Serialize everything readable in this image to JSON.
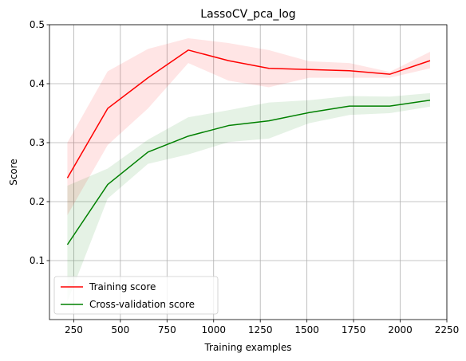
{
  "chart_data": {
    "type": "line",
    "title": "LassoCV_pca_log",
    "xlabel": "Training examples",
    "ylabel": "Score",
    "xlim": [
      120,
      2250
    ],
    "ylim": [
      0.0,
      0.5
    ],
    "grid": true,
    "legend_position": "lower-left",
    "x_ticks": [
      250,
      500,
      750,
      1000,
      1250,
      1500,
      1750,
      2000,
      2250
    ],
    "y_ticks": [
      0.1,
      0.2,
      0.3,
      0.4,
      0.5
    ],
    "x": [
      216,
      432,
      648,
      864,
      1080,
      1296,
      1512,
      1728,
      1944,
      2160
    ],
    "series": [
      {
        "name": "Training score",
        "color": "#ff0000",
        "values": [
          0.24,
          0.358,
          0.41,
          0.457,
          0.439,
          0.426,
          0.424,
          0.422,
          0.416,
          0.439
        ],
        "band_upper": [
          0.3,
          0.421,
          0.459,
          0.477,
          0.469,
          0.457,
          0.438,
          0.435,
          0.42,
          0.454
        ],
        "band_lower": [
          0.177,
          0.296,
          0.358,
          0.435,
          0.405,
          0.394,
          0.41,
          0.41,
          0.41,
          0.426
        ]
      },
      {
        "name": "Cross-validation score",
        "color": "#008000",
        "values": [
          0.127,
          0.229,
          0.284,
          0.311,
          0.329,
          0.337,
          0.351,
          0.362,
          0.362,
          0.372
        ],
        "band_upper": [
          0.227,
          0.256,
          0.305,
          0.343,
          0.355,
          0.368,
          0.372,
          0.379,
          0.378,
          0.384
        ],
        "band_lower": [
          0.03,
          0.205,
          0.264,
          0.28,
          0.301,
          0.307,
          0.333,
          0.347,
          0.35,
          0.361
        ]
      }
    ]
  }
}
